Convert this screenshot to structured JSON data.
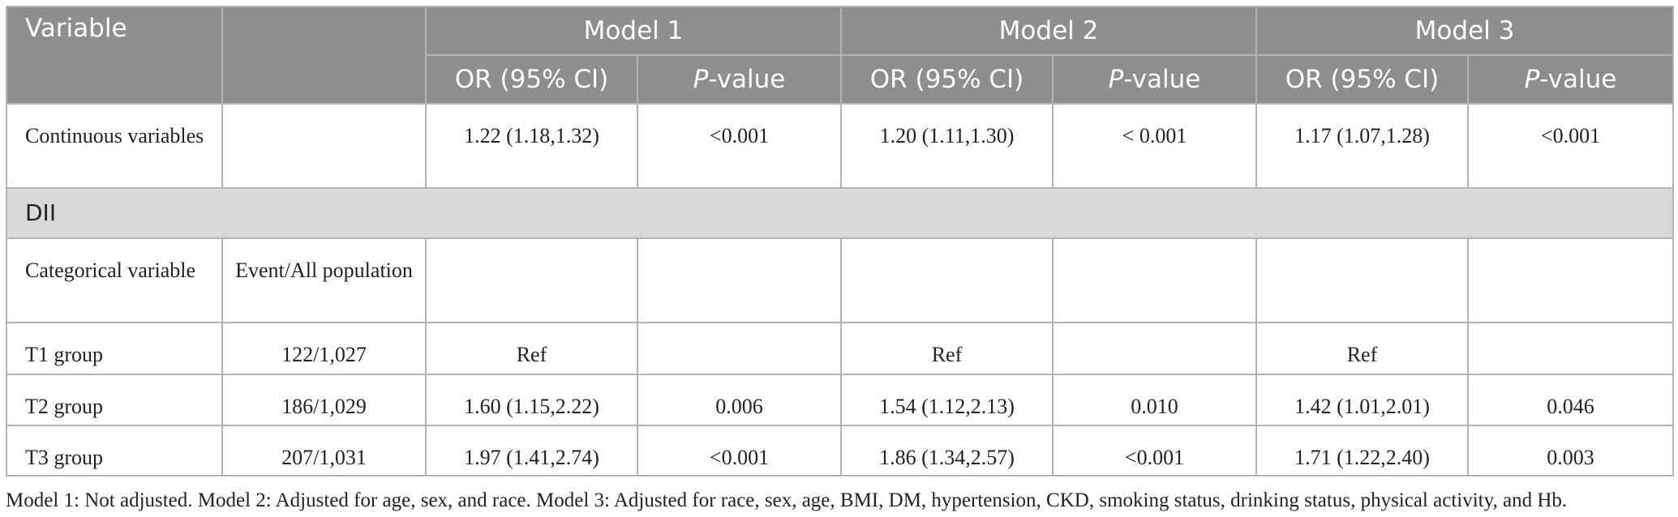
{
  "header": {
    "variable": "Variable",
    "models": [
      {
        "name": "Model 1",
        "or_label": "OR (95% CI)",
        "p_italic": "P",
        "p_rest": "-value"
      },
      {
        "name": "Model 2",
        "or_label": "OR (95% CI)",
        "p_italic": "P",
        "p_rest": "-value"
      },
      {
        "name": "Model 3",
        "or_label": "OR (95% CI)",
        "p_italic": "P",
        "p_rest": "-value"
      }
    ]
  },
  "rows": [
    [
      "Continuous variables",
      null,
      "1.22 (1.18,1.32)",
      "<0.001",
      "1.20 (1.11,1.30)",
      "< 0.001",
      "1.17 (1.07,1.28)",
      "<0.001"
    ],
    {
      "section": "DII"
    },
    [
      "Categorical variable",
      "Event/All population",
      null,
      null,
      null,
      null,
      null,
      null
    ],
    [
      "T1 group",
      "122/1,027",
      "Ref",
      null,
      "Ref",
      null,
      "Ref",
      null
    ],
    [
      "T2 group",
      "186/1,029",
      "1.60 (1.15,2.22)",
      "0.006",
      "1.54 (1.12,2.13)",
      "0.010",
      "1.42 (1.01,2.01)",
      "0.046"
    ],
    [
      "T3 group",
      "207/1,031",
      "1.97 (1.41,2.74)",
      "<0.001",
      "1.86 (1.34,2.57)",
      "<0.001",
      "1.71 (1.22,2.40)",
      "0.003"
    ]
  ],
  "footnote": "Model 1: Not adjusted. Model 2: Adjusted for age, sex, and race. Model 3: Adjusted for race, sex, age, BMI, DM, hypertension, CKD, smoking status, drinking status, physical activity, and Hb."
}
